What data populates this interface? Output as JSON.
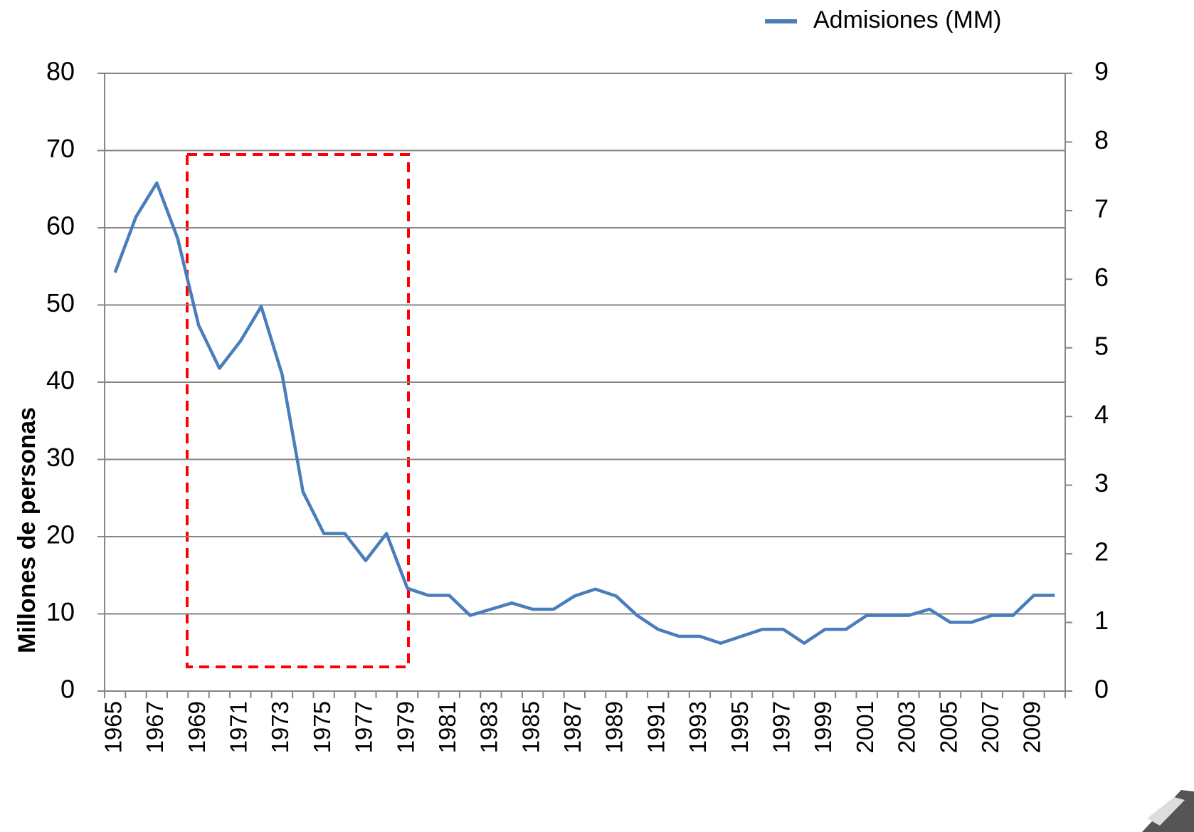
{
  "chart_data": {
    "type": "line",
    "y_axis_label": "Millones de personas",
    "categories": [
      "1965",
      null,
      "1967",
      null,
      "1969",
      null,
      "1971",
      null,
      "1973",
      null,
      "1975",
      null,
      "1977",
      null,
      "1979",
      null,
      "1981",
      null,
      "1983",
      null,
      "1985",
      null,
      "1987",
      null,
      "1989",
      null,
      "1991",
      null,
      "1993",
      null,
      "1995",
      null,
      "1997",
      null,
      "1999",
      null,
      "2001",
      null,
      "2003",
      null,
      "2005",
      null,
      "2007",
      null,
      "2009",
      null
    ],
    "series": [
      {
        "name": "Admisiones (MM)",
        "color": "#4a7ebb",
        "values": [
          54.2,
          61.4,
          65.8,
          58.6,
          47.4,
          41.8,
          45.3,
          49.8,
          41,
          25.8,
          20.4,
          20.4,
          16.9,
          20.4,
          13.3,
          12.4,
          12.4,
          9.8,
          10.6,
          11.4,
          10.6,
          10.6,
          12.3,
          13.2,
          12.3,
          9.8,
          8.0,
          7.1,
          7.1,
          6.2,
          7.1,
          8.0,
          8.0,
          6.2,
          8.0,
          8.0,
          9.8,
          9.8,
          9.8,
          10.6,
          8.9,
          8.9,
          9.8,
          9.8,
          12.4,
          12.4
        ]
      }
    ],
    "ylim": [
      0,
      80
    ],
    "yticks": [
      0,
      10,
      20,
      30,
      40,
      50,
      60,
      70,
      80
    ],
    "y2lim": [
      0,
      9
    ],
    "y2ticks": [
      0,
      1,
      2,
      3,
      4,
      5,
      6,
      7,
      8,
      9
    ],
    "grid": true,
    "legend": "top-right"
  }
}
